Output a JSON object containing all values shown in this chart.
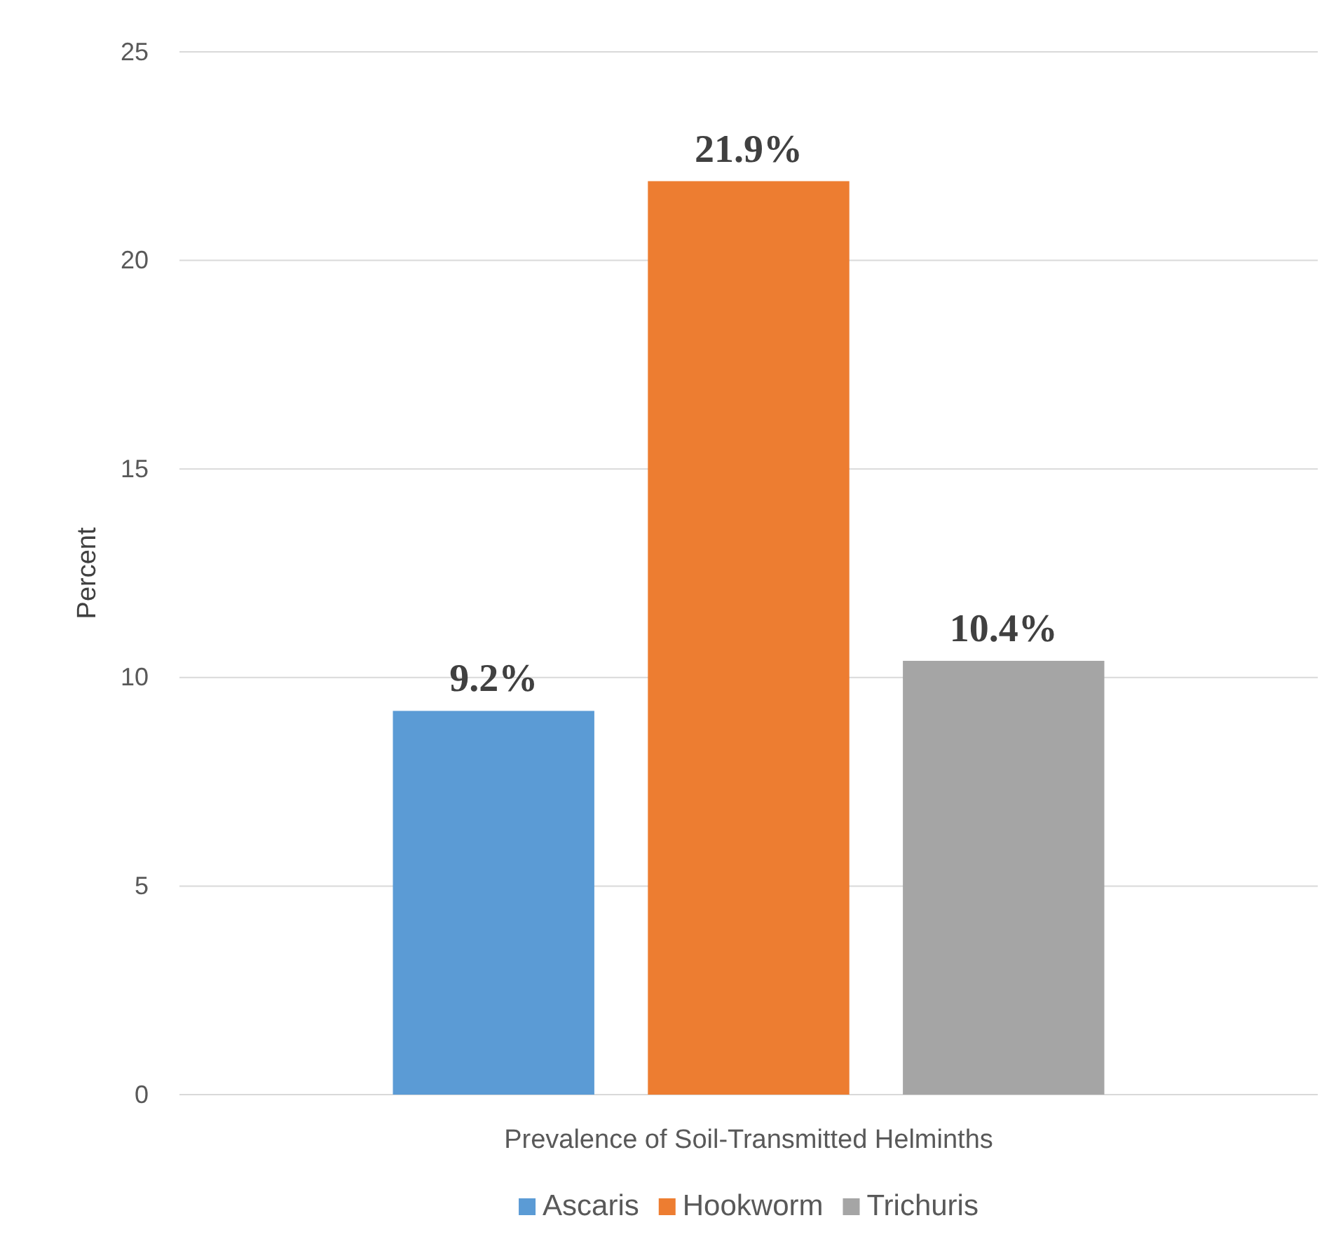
{
  "chart_data": {
    "type": "bar",
    "categories": [
      "Prevalence of Soil-Transmitted Helminths"
    ],
    "ylabel": "Percent",
    "series": [
      {
        "name": "Ascaris",
        "color": "#5b9bd5",
        "values": [
          9.2
        ],
        "value_labels": [
          "9.2%"
        ]
      },
      {
        "name": "Hookworm",
        "color": "#ed7d31",
        "values": [
          21.9
        ],
        "value_labels": [
          "21.9%"
        ]
      },
      {
        "name": "Trichuris",
        "color": "#a5a5a5",
        "values": [
          10.4
        ],
        "value_labels": [
          "10.4%"
        ]
      }
    ],
    "ylim": [
      0,
      25
    ],
    "yticks": [
      0,
      5,
      10,
      15,
      20,
      25
    ],
    "grid": "y",
    "legend": "bottom"
  }
}
